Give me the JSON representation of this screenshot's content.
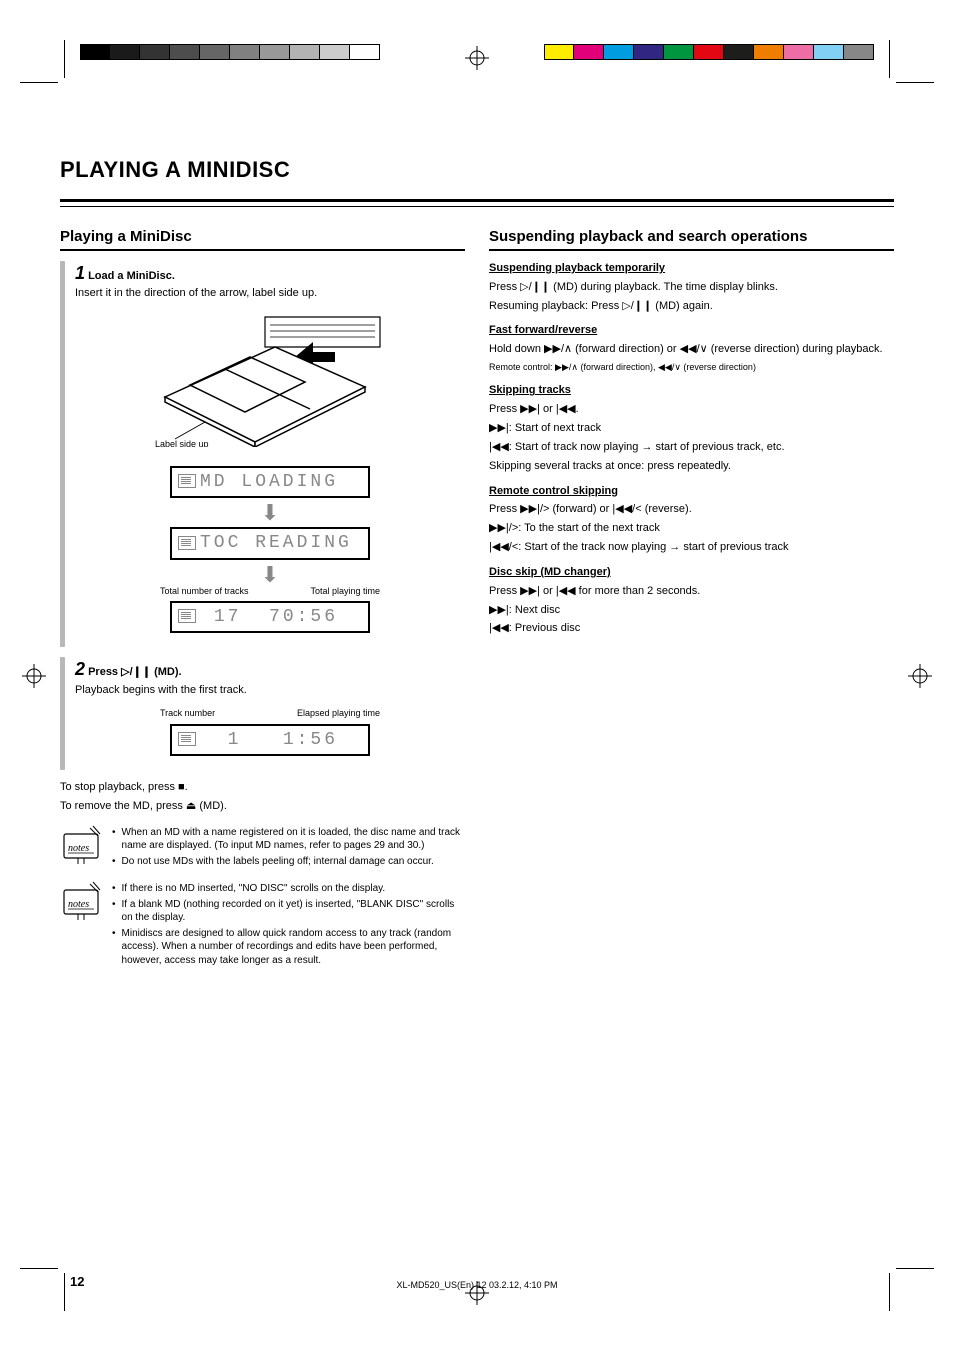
{
  "title": "PLAYING A MINIDISC",
  "left": {
    "heading": "Playing a MiniDisc",
    "step1": {
      "num": "1",
      "text": "Load a MiniDisc.",
      "sub": "Insert it in the direction of the arrow, label side up.",
      "illus_label": "Label side up",
      "lcd1": "MD LOADING",
      "lcd2": "TOC READING",
      "callout_tracks": "Total number of tracks",
      "callout_time": "Total playing time",
      "lcd3_tracks": "17",
      "lcd3_time": "70:56"
    },
    "step2": {
      "num": "2",
      "text": "Press ▷/❙❙ (MD).",
      "sub": "Playback begins with the first track.",
      "callout_trackno": "Track number",
      "callout_elapsed": "Elapsed playing time",
      "lcd_track": "1",
      "lcd_time": "1:56"
    },
    "stop_label": "To stop playback, press ■.",
    "eject_label": "To remove the MD, press ⏏ (MD).",
    "notes1": [
      "When an MD with a name registered on it is loaded, the disc name and track name are displayed. (To input MD names, refer to pages 29 and 30.)",
      "Do not use MDs with the labels peeling off; internal damage can occur."
    ],
    "notes2": [
      "If there is no MD inserted, \"NO DISC\" scrolls on the display.",
      "If a blank MD (nothing recorded on it yet) is inserted, \"BLANK DISC\" scrolls on the display.",
      "Minidiscs are designed to allow quick random access to any track (random access). When a number of recordings and edits have been performed, however, access may take longer as a result."
    ]
  },
  "right": {
    "heading": "Suspending playback and search operations",
    "pause_head": "Suspending playback temporarily",
    "pause_body": "Press ▷/❙❙ (MD) during playback. The time display blinks.",
    "resume_head": "Resuming playback: Press ▷/❙❙ (MD) again.",
    "ff_head": "Fast forward/reverse",
    "ff_body1": "Hold down ▶▶/∧ (forward direction) or ◀◀/∨ (reverse direction) during playback.",
    "ff_body2": "Remote control: ▶▶/∧ (forward direction), ◀◀/∨ (reverse direction)",
    "skip_head": "Skipping tracks",
    "skip_body1": "Press ▶▶| or |◀◀.",
    "skip_body2": "▶▶|: Start of next track",
    "skip_body3": "|◀◀: Start of track now playing → start of previous track, etc.",
    "skip_body4": "Skipping several tracks at once: press repeatedly.",
    "remote_head": "Remote control skipping",
    "remote_body1": "Press ▶▶|/> (forward) or |◀◀/< (reverse).",
    "remote_body2": "▶▶|/>: To the start of the next track",
    "remote_body3": "|◀◀/<: Start of the track now playing → start of previous track",
    "disc_head": "Disc skip (MD changer)",
    "disc_body1": "Press ▶▶| or |◀◀ for more than 2 seconds.",
    "disc_body2": "▶▶|: Next disc",
    "disc_body3": "|◀◀: Previous disc"
  },
  "page_number": "12",
  "footer": "XL-MD520_US(En)      12                                        03.2.12, 4:10 PM",
  "palette": {
    "gray_ramp": [
      "#000000",
      "#1a1a1a",
      "#333333",
      "#4d4d4d",
      "#666666",
      "#808080",
      "#999999",
      "#b3b3b3",
      "#cccccc",
      "#ffffff"
    ],
    "colors": [
      "#ffed00",
      "#e2007a",
      "#009ee0",
      "#312783",
      "#009640",
      "#e30613",
      "#1d1d1b",
      "#ef7d00",
      "#ec6ea5",
      "#83d0f5",
      "#878787"
    ]
  }
}
